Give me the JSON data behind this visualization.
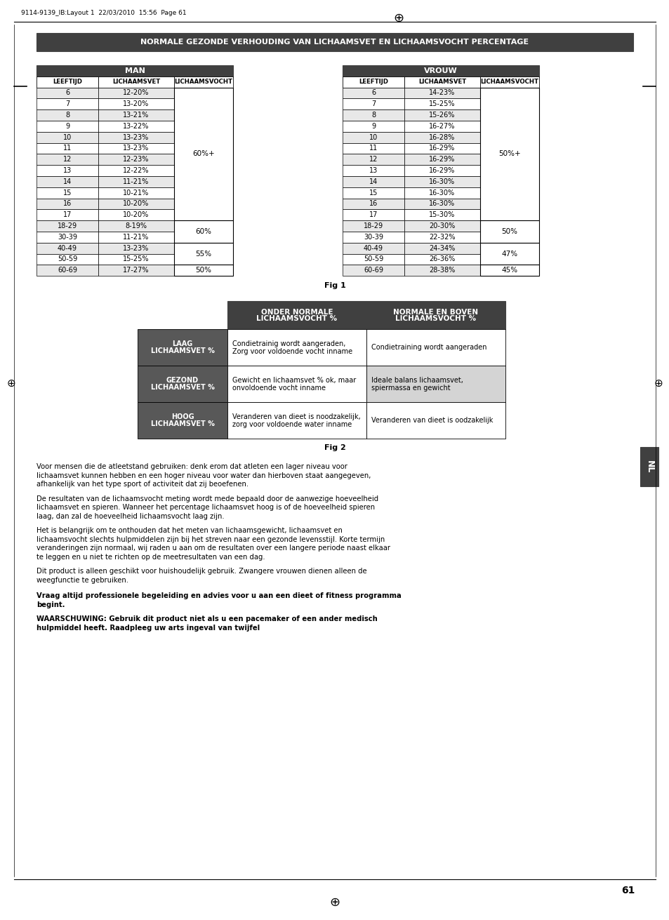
{
  "page_header": "9114-9139_IB:Layout 1  22/03/2010  15:56  Page 61",
  "main_title": "NORMALE GEZONDE VERHOUDING VAN LICHAAMSVET EN LICHAAMSVOCHT PERCENTAGE",
  "fig1_label": "Fig 1",
  "fig2_label": "Fig 2",
  "man_header": "MAN",
  "vrouw_header": "VROUW",
  "col_headers": [
    "LEEFTIJD",
    "LICHAAMSVET",
    "LICHAAMSVOCHT"
  ],
  "man_data": [
    [
      "6",
      "12-20%"
    ],
    [
      "7",
      "13-20%"
    ],
    [
      "8",
      "13-21%"
    ],
    [
      "9",
      "13-22%"
    ],
    [
      "10",
      "13-23%"
    ],
    [
      "11",
      "13-23%"
    ],
    [
      "12",
      "12-23%"
    ],
    [
      "13",
      "12-22%"
    ],
    [
      "14",
      "11-21%"
    ],
    [
      "15",
      "10-21%"
    ],
    [
      "16",
      "10-20%"
    ],
    [
      "17",
      "10-20%"
    ],
    [
      "18-29",
      "8-19%"
    ],
    [
      "30-39",
      "11-21%"
    ],
    [
      "40-49",
      "13-23%"
    ],
    [
      "50-59",
      "15-25%"
    ],
    [
      "60-69",
      "17-27%"
    ]
  ],
  "vrouw_data": [
    [
      "6",
      "14-23%"
    ],
    [
      "7",
      "15-25%"
    ],
    [
      "8",
      "15-26%"
    ],
    [
      "9",
      "16-27%"
    ],
    [
      "10",
      "16-28%"
    ],
    [
      "11",
      "16-29%"
    ],
    [
      "12",
      "16-29%"
    ],
    [
      "13",
      "16-29%"
    ],
    [
      "14",
      "16-30%"
    ],
    [
      "15",
      "16-30%"
    ],
    [
      "16",
      "16-30%"
    ],
    [
      "17",
      "15-30%"
    ],
    [
      "18-29",
      "20-30%"
    ],
    [
      "30-39",
      "22-32%"
    ],
    [
      "40-49",
      "24-34%"
    ],
    [
      "50-59",
      "26-36%"
    ],
    [
      "60-69",
      "28-38%"
    ]
  ],
  "man_merge_spans": [
    [
      0,
      12,
      "60%+"
    ],
    [
      12,
      2,
      "60%"
    ],
    [
      14,
      2,
      "55%"
    ],
    [
      16,
      1,
      "50%"
    ]
  ],
  "vrouw_merge_spans": [
    [
      0,
      12,
      "50%+"
    ],
    [
      12,
      2,
      "50%"
    ],
    [
      14,
      2,
      "47%"
    ],
    [
      16,
      1,
      "45%"
    ]
  ],
  "fig2_col1_header": "ONDER NORMALE\nLICHAAMSVOCHT %",
  "fig2_col2_header": "NORMALE EN BOVEN\nLICHAAMSVOCHT %",
  "fig2_row_headers": [
    "LAAG LICHAAMSVET %",
    "GEZOND LICHAAMSVET %",
    "HOOG LICHAAMSVET %"
  ],
  "fig2_data": [
    [
      "Condietrainig wordt aangeraden,\nZorg voor voldoende vocht inname",
      "Condietraining wordt aangeraden"
    ],
    [
      "Gewicht en lichaamsvet % ok, maar\nonvoldoende vocht inname",
      "Ideale balans lichaamsvet,\nspiermassa en gewicht"
    ],
    [
      "Veranderen van dieet is noodzakelijk,\nzorg voor voldoende water inname",
      "Veranderen van dieet is oodzakelijk"
    ]
  ],
  "body_paragraphs": [
    "Voor mensen die de atleetstand gebruiken: denk erom dat atleten een lager niveau voor\nlichaamsvet kunnen hebben en een hoger niveau voor water dan hierboven staat aangegeven,\nafhankelijk van het type sport of activiteit dat zij beoefenen.",
    "De resultaten van de lichaamsvocht meting wordt mede bepaald door de aanwezige hoeveelheid\nlichaamsvet en spieren. Wanneer het percentage lichaamsvet hoog is of de hoeveelheid spieren\nlaag, dan zal de hoeveelheid lichaamsvocht laag zijn.",
    "Het is belangrijk om te onthouden dat het meten van lichaamsgewicht, lichaamsvet en\nlichaamsvocht slechts hulpmiddelen zijn bij het streven naar een gezonde levensstijl. Korte termijn\nveranderingen zijn normaal, wij raden u aan om de resultaten over een langere periode naast elkaar\nte leggen en u niet te richten op de meetresultaten van een dag.",
    "Dit product is alleen geschikt voor huishoudelijk gebruik. Zwangere vrouwen dienen alleen de\nweegfunctie te gebruiken."
  ],
  "bold_para1_lines": [
    "Vraag altijd professionele begeleiding en advies voor u aan een dieet of fitness programma",
    "begint."
  ],
  "bold_para2_lines": [
    "WAARSCHUWING: Gebruik dit product niet als u een pacemaker of een ander medisch",
    "hulpmiddel heeft. Raadpleeg uw arts ingeval van twijfel"
  ],
  "dark_gray": "#404040",
  "medium_gray": "#585858",
  "lighter_gray": "#e8e8e8",
  "highlight_color": "#d4d4d4",
  "white": "#ffffff",
  "black": "#000000",
  "page_number": "61",
  "nl_label": "NL"
}
